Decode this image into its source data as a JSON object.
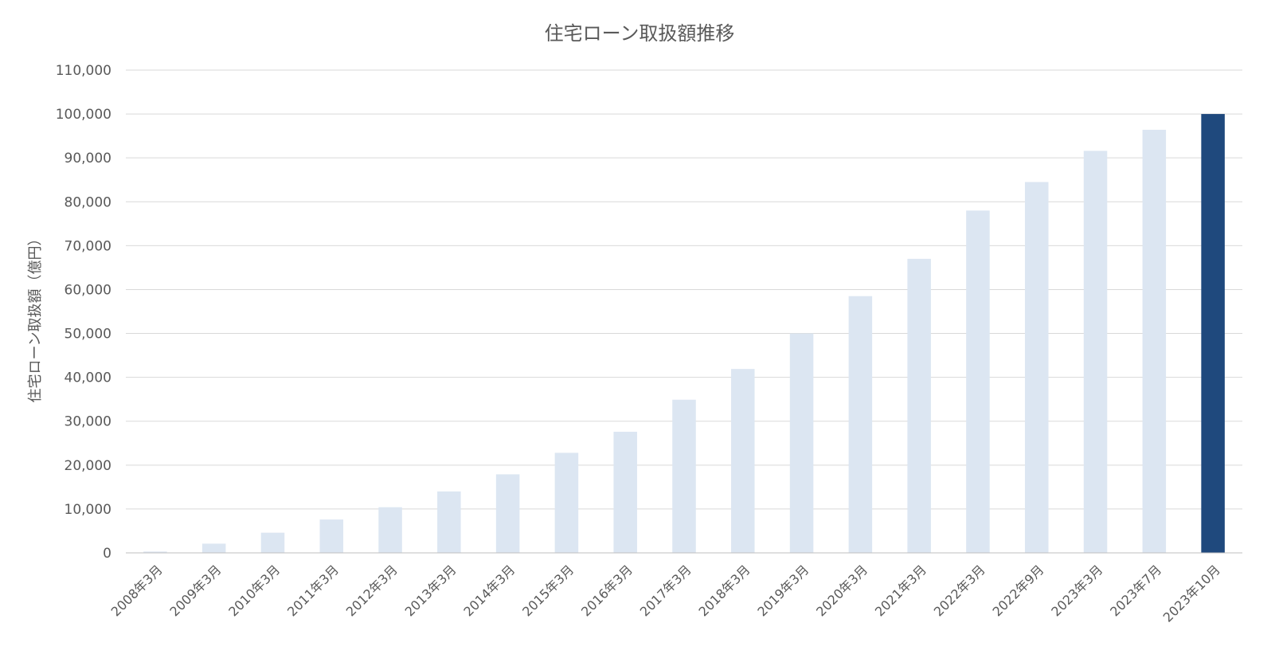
{
  "chart_data": {
    "type": "bar",
    "title": "住宅ローン取扱額推移",
    "xlabel": "",
    "ylabel": "住宅ローン取扱額（億円）",
    "ylim": [
      0,
      110000
    ],
    "y_ticks": [
      0,
      10000,
      20000,
      30000,
      40000,
      50000,
      60000,
      70000,
      80000,
      90000,
      100000,
      110000
    ],
    "y_tick_labels": [
      "0",
      "10,000",
      "20,000",
      "30,000",
      "40,000",
      "50,000",
      "60,000",
      "70,000",
      "80,000",
      "90,000",
      "100,000",
      "110,000"
    ],
    "grid": true,
    "legend": "none",
    "categories": [
      "2008年3月",
      "2009年3月",
      "2010年3月",
      "2011年3月",
      "2012年3月",
      "2013年3月",
      "2014年3月",
      "2015年3月",
      "2016年3月",
      "2017年3月",
      "2018年3月",
      "2019年3月",
      "2020年3月",
      "2021年3月",
      "2022年3月",
      "2022年9月",
      "2023年3月",
      "2023年7月",
      "2023年10月"
    ],
    "values": [
      300,
      2100,
      4600,
      7600,
      10400,
      14000,
      17900,
      22800,
      27600,
      34900,
      41900,
      50000,
      58500,
      67000,
      78000,
      84500,
      91600,
      96400,
      100000
    ],
    "colors": {
      "default_bar": "#dce6f2",
      "highlight_bar": "#1f497d",
      "gridline": "#d9d9d9",
      "axis_line": "#bfbfbf"
    },
    "highlight_index": 18
  }
}
